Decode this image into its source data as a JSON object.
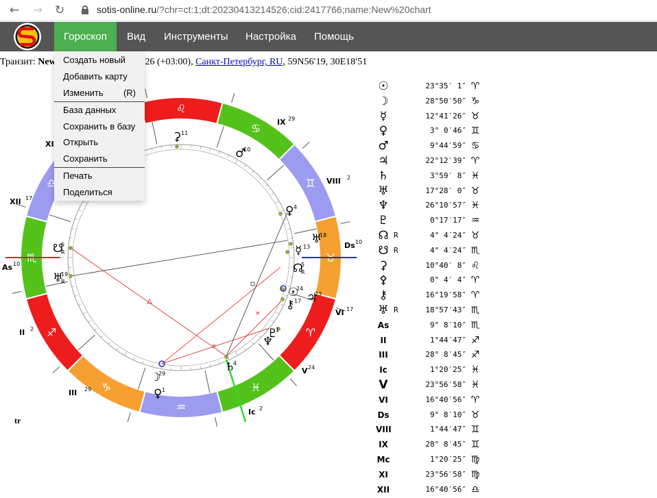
{
  "browser": {
    "url_domain": "sotis-online.ru",
    "url_path": "/?chr=ct:1;dt:20230413214526;cid:2417766;name:New%20chart"
  },
  "menu": {
    "items": [
      {
        "label": "Гороскоп",
        "active": true
      },
      {
        "label": "Вид"
      },
      {
        "label": "Инструменты"
      },
      {
        "label": "Настройка"
      },
      {
        "label": "Помощь"
      }
    ],
    "dropdown": [
      {
        "label": "Создать новый"
      },
      {
        "label": "Добавить карту"
      },
      {
        "label": "Изменить",
        "hotkey": "(R)"
      },
      {
        "label": "База данных"
      },
      {
        "label": "Сохранить в базу"
      },
      {
        "label": "Открыть"
      },
      {
        "label": "Сохранить"
      },
      {
        "label": "Печать"
      },
      {
        "label": "Поделиться"
      }
    ]
  },
  "transit": {
    "prefix": "Транзит:",
    "name": "New",
    "time": ":45:26 (+03:00),",
    "place": "Санкт-Петербург, RU",
    "coords": ", 59N56′19, 30E18′51"
  },
  "chart": {
    "tr_label": "tr",
    "signs_ring": [
      {
        "glyph": "♌",
        "color": "#ee1c1c"
      },
      {
        "glyph": "♋",
        "color": "#55c21b"
      },
      {
        "glyph": "♊",
        "color": "#9b9bf0"
      },
      {
        "glyph": "♉",
        "color": "#f5a030"
      },
      {
        "glyph": "♈",
        "color": "#ee1c1c"
      },
      {
        "glyph": "♓",
        "color": "#55c21b"
      },
      {
        "glyph": "♒",
        "color": "#9b9bf0"
      },
      {
        "glyph": "♑",
        "color": "#f5a030"
      },
      {
        "glyph": "♐",
        "color": "#ee1c1c"
      },
      {
        "glyph": "♏",
        "color": "#55c21b"
      },
      {
        "glyph": "♎",
        "color": "#9b9bf0"
      },
      {
        "glyph": "♍",
        "color": "#f5a030"
      }
    ],
    "house_labels": [
      {
        "text": "IX",
        "sup": "29"
      },
      {
        "text": "VIII",
        "sup": "2"
      },
      {
        "text": "Ds",
        "sup": "10"
      },
      {
        "text": "VI",
        "sup": "17"
      },
      {
        "text": "V",
        "sup": "24"
      },
      {
        "text": "Ic",
        "sup": "2"
      },
      {
        "text": "III",
        "sup": "29"
      },
      {
        "text": "II",
        "sup": "2"
      },
      {
        "text": "As",
        "sup": "10"
      },
      {
        "text": "XII",
        "sup": "17"
      },
      {
        "text": "XI",
        "sup": ""
      }
    ],
    "planets": [
      {
        "glyph": "⚳",
        "deg": "11",
        "retro": false
      },
      {
        "glyph": "♂",
        "deg": "10",
        "retro": false
      },
      {
        "glyph": "♀",
        "deg": "4",
        "retro": false
      },
      {
        "glyph": "♅",
        "deg": "18",
        "retro": false
      },
      {
        "glyph": "☿",
        "deg": "13",
        "retro": false
      },
      {
        "glyph": "☊",
        "deg": "5",
        "retro": true
      },
      {
        "glyph": "☉",
        "deg": "24",
        "retro": false
      },
      {
        "glyph": "♃",
        "deg": "23",
        "retro": false
      },
      {
        "glyph": "⚷",
        "deg": "17",
        "retro": false
      },
      {
        "glyph": "♇",
        "deg": "1",
        "retro": false
      },
      {
        "glyph": "♆",
        "deg": "",
        "retro": false
      },
      {
        "glyph": "♄",
        "deg": "4",
        "retro": false
      },
      {
        "glyph": "☽",
        "deg": "29",
        "retro": false
      },
      {
        "glyph": "♀",
        "deg": "1",
        "retro": false
      },
      {
        "glyph": "☋",
        "deg": "5",
        "retro": true
      },
      {
        "glyph": "♅",
        "deg": "19",
        "retro": true
      }
    ]
  },
  "table": [
    {
      "sym": "☉",
      "retro": "",
      "deg": "23°35′ 1″",
      "sign": "♈"
    },
    {
      "sym": "☽",
      "retro": "",
      "deg": "28°50′50″",
      "sign": "♑"
    },
    {
      "sym": "☿",
      "retro": "",
      "deg": "12°41′26″",
      "sign": "♉"
    },
    {
      "sym": "♀",
      "retro": "",
      "deg": "3° 0′46″",
      "sign": "♊"
    },
    {
      "sym": "♂",
      "retro": "",
      "deg": "9°44′59″",
      "sign": "♋"
    },
    {
      "sym": "♃",
      "retro": "",
      "deg": "22°12′39″",
      "sign": "♈"
    },
    {
      "sym": "♄",
      "retro": "",
      "deg": "3°59′ 8″",
      "sign": "♓"
    },
    {
      "sym": "♅",
      "retro": "",
      "deg": "17°28′ 0″",
      "sign": "♉"
    },
    {
      "sym": "♆",
      "retro": "",
      "deg": "26°10′57″",
      "sign": "♓"
    },
    {
      "sym": "♇",
      "retro": "",
      "deg": "0°17′17″",
      "sign": "♒"
    },
    {
      "sym": "☊",
      "retro": "R",
      "deg": "4° 4′24″",
      "sign": "♉"
    },
    {
      "sym": "☋",
      "retro": "R",
      "deg": "4° 4′24″",
      "sign": "♏"
    },
    {
      "sym": "⚳",
      "retro": "",
      "deg": "10°40′ 8″",
      "sign": "♌"
    },
    {
      "sym": "⚴",
      "retro": "",
      "deg": "0° 4′ 4″",
      "sign": "♈"
    },
    {
      "sym": "⚷",
      "retro": "",
      "deg": "16°19′58″",
      "sign": "♈"
    },
    {
      "sym": "♅",
      "retro": "R",
      "deg": "18°57′43″",
      "sign": "♏"
    },
    {
      "sym": "As",
      "retro": "",
      "deg": "9° 8′10″",
      "sign": "♏"
    },
    {
      "sym": "II",
      "retro": "",
      "deg": "1°44′47″",
      "sign": "♐"
    },
    {
      "sym": "III",
      "retro": "",
      "deg": "28° 8′45″",
      "sign": "♐"
    },
    {
      "sym": "Ic",
      "retro": "",
      "deg": "1°20′25″",
      "sign": "♓"
    },
    {
      "sym": "V",
      "retro": "",
      "deg": "23°56′58″",
      "sign": "♓"
    },
    {
      "sym": "VI",
      "retro": "",
      "deg": "16°40′56″",
      "sign": "♈"
    },
    {
      "sym": "Ds",
      "retro": "",
      "deg": "9° 8′10″",
      "sign": "♉"
    },
    {
      "sym": "VIII",
      "retro": "",
      "deg": "1°44′47″",
      "sign": "♊"
    },
    {
      "sym": "IX",
      "retro": "",
      "deg": "28° 8′45″",
      "sign": "♊"
    },
    {
      "sym": "Mc",
      "retro": "",
      "deg": "1°20′25″",
      "sign": "♍"
    },
    {
      "sym": "XI",
      "retro": "",
      "deg": "23°56′58″",
      "sign": "♍"
    },
    {
      "sym": "XII",
      "retro": "",
      "deg": "16°40′56″",
      "sign": "♎"
    }
  ]
}
